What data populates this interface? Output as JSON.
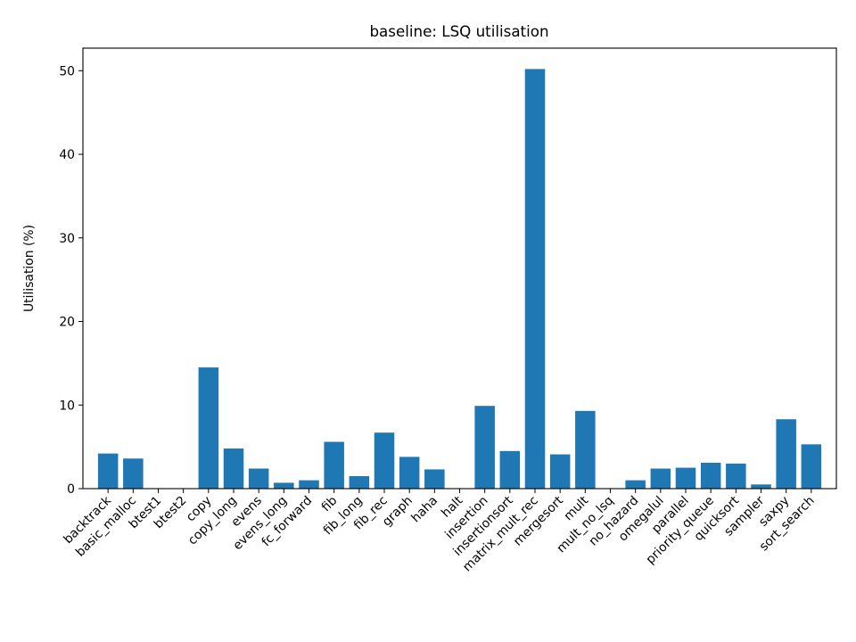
{
  "chart_data": {
    "type": "bar",
    "title": "baseline: LSQ utilisation",
    "xlabel": "",
    "ylabel": "Utilisation (%)",
    "ylim": [
      0,
      52.7
    ],
    "yticks": [
      0,
      10,
      20,
      30,
      40,
      50
    ],
    "grid": false,
    "bar_color": "#1f77b4",
    "categories": [
      "backtrack",
      "basic_malloc",
      "btest1",
      "btest2",
      "copy",
      "copy_long",
      "evens",
      "evens_long",
      "fc_forward",
      "fib",
      "fib_long",
      "fib_rec",
      "graph",
      "haha",
      "halt",
      "insertion",
      "insertionsort",
      "matrix_mult_rec",
      "mergesort",
      "mult",
      "mult_no_lsq",
      "no_hazard",
      "omegalul",
      "parallel",
      "priority_queue",
      "quicksort",
      "sampler",
      "saxpy",
      "sort_search"
    ],
    "values": [
      4.2,
      3.6,
      0.05,
      0.05,
      14.5,
      4.8,
      2.4,
      0.7,
      1.0,
      5.6,
      1.5,
      6.7,
      3.8,
      2.3,
      0.0,
      9.9,
      4.5,
      50.2,
      4.1,
      9.3,
      0.0,
      1.0,
      2.4,
      2.5,
      3.1,
      3.0,
      0.5,
      8.3,
      5.3
    ]
  }
}
